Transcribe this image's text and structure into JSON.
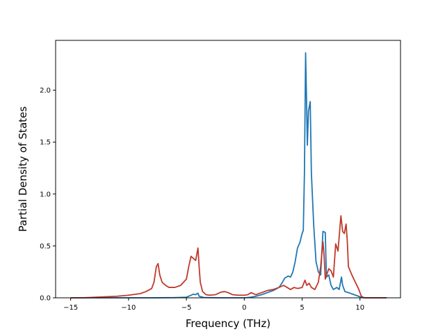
{
  "chart_data": {
    "type": "line",
    "title": "",
    "xlabel": "Frequency (THz)",
    "ylabel": "Partial Density of States",
    "xlim": [
      -16.3,
      13.5
    ],
    "ylim": [
      0,
      2.48
    ],
    "xticks": [
      -15,
      -10,
      -5,
      0,
      5,
      10
    ],
    "yticks": [
      0.0,
      0.5,
      1.0,
      1.5,
      2.0
    ],
    "xtick_labels": [
      "−15",
      "−10",
      "−5",
      "0",
      "5",
      "10"
    ],
    "ytick_labels": [
      "0.0",
      "0.5",
      "1.0",
      "1.5",
      "2.0"
    ],
    "grid": false,
    "legend": false,
    "series": [
      {
        "color": "#1f77b4",
        "points": [
          [
            -15.0,
            0.0
          ],
          [
            -10.0,
            0.0
          ],
          [
            -8.0,
            0.0
          ],
          [
            -6.0,
            0.002
          ],
          [
            -5.0,
            0.006
          ],
          [
            -4.6,
            0.025
          ],
          [
            -4.4,
            0.035
          ],
          [
            -4.2,
            0.03
          ],
          [
            -4.0,
            0.045
          ],
          [
            -3.9,
            0.015
          ],
          [
            -3.5,
            0.003
          ],
          [
            -2.0,
            0.0
          ],
          [
            0.0,
            0.0
          ],
          [
            0.5,
            0.005
          ],
          [
            1.0,
            0.015
          ],
          [
            1.5,
            0.03
          ],
          [
            2.0,
            0.05
          ],
          [
            2.5,
            0.07
          ],
          [
            3.0,
            0.1
          ],
          [
            3.3,
            0.15
          ],
          [
            3.5,
            0.19
          ],
          [
            3.8,
            0.21
          ],
          [
            4.0,
            0.2
          ],
          [
            4.2,
            0.25
          ],
          [
            4.4,
            0.35
          ],
          [
            4.6,
            0.48
          ],
          [
            4.8,
            0.53
          ],
          [
            5.0,
            0.62
          ],
          [
            5.1,
            0.65
          ],
          [
            5.2,
            1.2
          ],
          [
            5.3,
            2.36
          ],
          [
            5.4,
            1.8
          ],
          [
            5.45,
            1.47
          ],
          [
            5.55,
            1.8
          ],
          [
            5.7,
            1.89
          ],
          [
            5.8,
            1.2
          ],
          [
            6.0,
            0.7
          ],
          [
            6.2,
            0.35
          ],
          [
            6.4,
            0.25
          ],
          [
            6.6,
            0.22
          ],
          [
            6.8,
            0.64
          ],
          [
            7.0,
            0.63
          ],
          [
            7.1,
            0.2
          ],
          [
            7.3,
            0.22
          ],
          [
            7.5,
            0.12
          ],
          [
            7.7,
            0.08
          ],
          [
            8.0,
            0.1
          ],
          [
            8.2,
            0.08
          ],
          [
            8.4,
            0.2
          ],
          [
            8.5,
            0.12
          ],
          [
            8.7,
            0.06
          ],
          [
            9.0,
            0.05
          ],
          [
            9.5,
            0.03
          ],
          [
            10.0,
            0.01
          ],
          [
            10.5,
            0.0
          ],
          [
            12.3,
            0.0
          ]
        ]
      },
      {
        "color": "#c0392b",
        "points": [
          [
            -15.0,
            0.0
          ],
          [
            -14.0,
            0.0
          ],
          [
            -13.0,
            0.005
          ],
          [
            -12.0,
            0.01
          ],
          [
            -11.0,
            0.015
          ],
          [
            -10.0,
            0.025
          ],
          [
            -9.0,
            0.04
          ],
          [
            -8.5,
            0.06
          ],
          [
            -8.0,
            0.09
          ],
          [
            -7.8,
            0.15
          ],
          [
            -7.6,
            0.3
          ],
          [
            -7.45,
            0.33
          ],
          [
            -7.3,
            0.22
          ],
          [
            -7.1,
            0.15
          ],
          [
            -6.8,
            0.12
          ],
          [
            -6.5,
            0.1
          ],
          [
            -6.0,
            0.1
          ],
          [
            -5.5,
            0.12
          ],
          [
            -5.0,
            0.18
          ],
          [
            -4.8,
            0.3
          ],
          [
            -4.6,
            0.4
          ],
          [
            -4.4,
            0.38
          ],
          [
            -4.2,
            0.36
          ],
          [
            -4.0,
            0.48
          ],
          [
            -3.9,
            0.3
          ],
          [
            -3.8,
            0.15
          ],
          [
            -3.6,
            0.06
          ],
          [
            -3.3,
            0.03
          ],
          [
            -3.0,
            0.025
          ],
          [
            -2.5,
            0.03
          ],
          [
            -2.0,
            0.055
          ],
          [
            -1.7,
            0.06
          ],
          [
            -1.4,
            0.05
          ],
          [
            -1.0,
            0.03
          ],
          [
            -0.5,
            0.025
          ],
          [
            0.0,
            0.025
          ],
          [
            0.3,
            0.03
          ],
          [
            0.6,
            0.05
          ],
          [
            0.8,
            0.04
          ],
          [
            1.0,
            0.03
          ],
          [
            1.5,
            0.05
          ],
          [
            2.0,
            0.07
          ],
          [
            2.5,
            0.08
          ],
          [
            3.0,
            0.1
          ],
          [
            3.4,
            0.12
          ],
          [
            3.7,
            0.1
          ],
          [
            4.0,
            0.08
          ],
          [
            4.3,
            0.1
          ],
          [
            4.6,
            0.09
          ],
          [
            5.0,
            0.1
          ],
          [
            5.25,
            0.17
          ],
          [
            5.4,
            0.12
          ],
          [
            5.6,
            0.14
          ],
          [
            5.8,
            0.1
          ],
          [
            6.1,
            0.08
          ],
          [
            6.4,
            0.15
          ],
          [
            6.6,
            0.3
          ],
          [
            6.8,
            0.54
          ],
          [
            6.9,
            0.4
          ],
          [
            7.0,
            0.18
          ],
          [
            7.3,
            0.28
          ],
          [
            7.5,
            0.26
          ],
          [
            7.7,
            0.2
          ],
          [
            7.9,
            0.52
          ],
          [
            8.1,
            0.45
          ],
          [
            8.35,
            0.79
          ],
          [
            8.5,
            0.64
          ],
          [
            8.65,
            0.62
          ],
          [
            8.8,
            0.71
          ],
          [
            8.9,
            0.55
          ],
          [
            9.0,
            0.3
          ],
          [
            9.3,
            0.22
          ],
          [
            9.6,
            0.15
          ],
          [
            9.9,
            0.08
          ],
          [
            10.1,
            0.02
          ],
          [
            10.3,
            0.0
          ],
          [
            12.3,
            0.0
          ]
        ]
      }
    ]
  }
}
